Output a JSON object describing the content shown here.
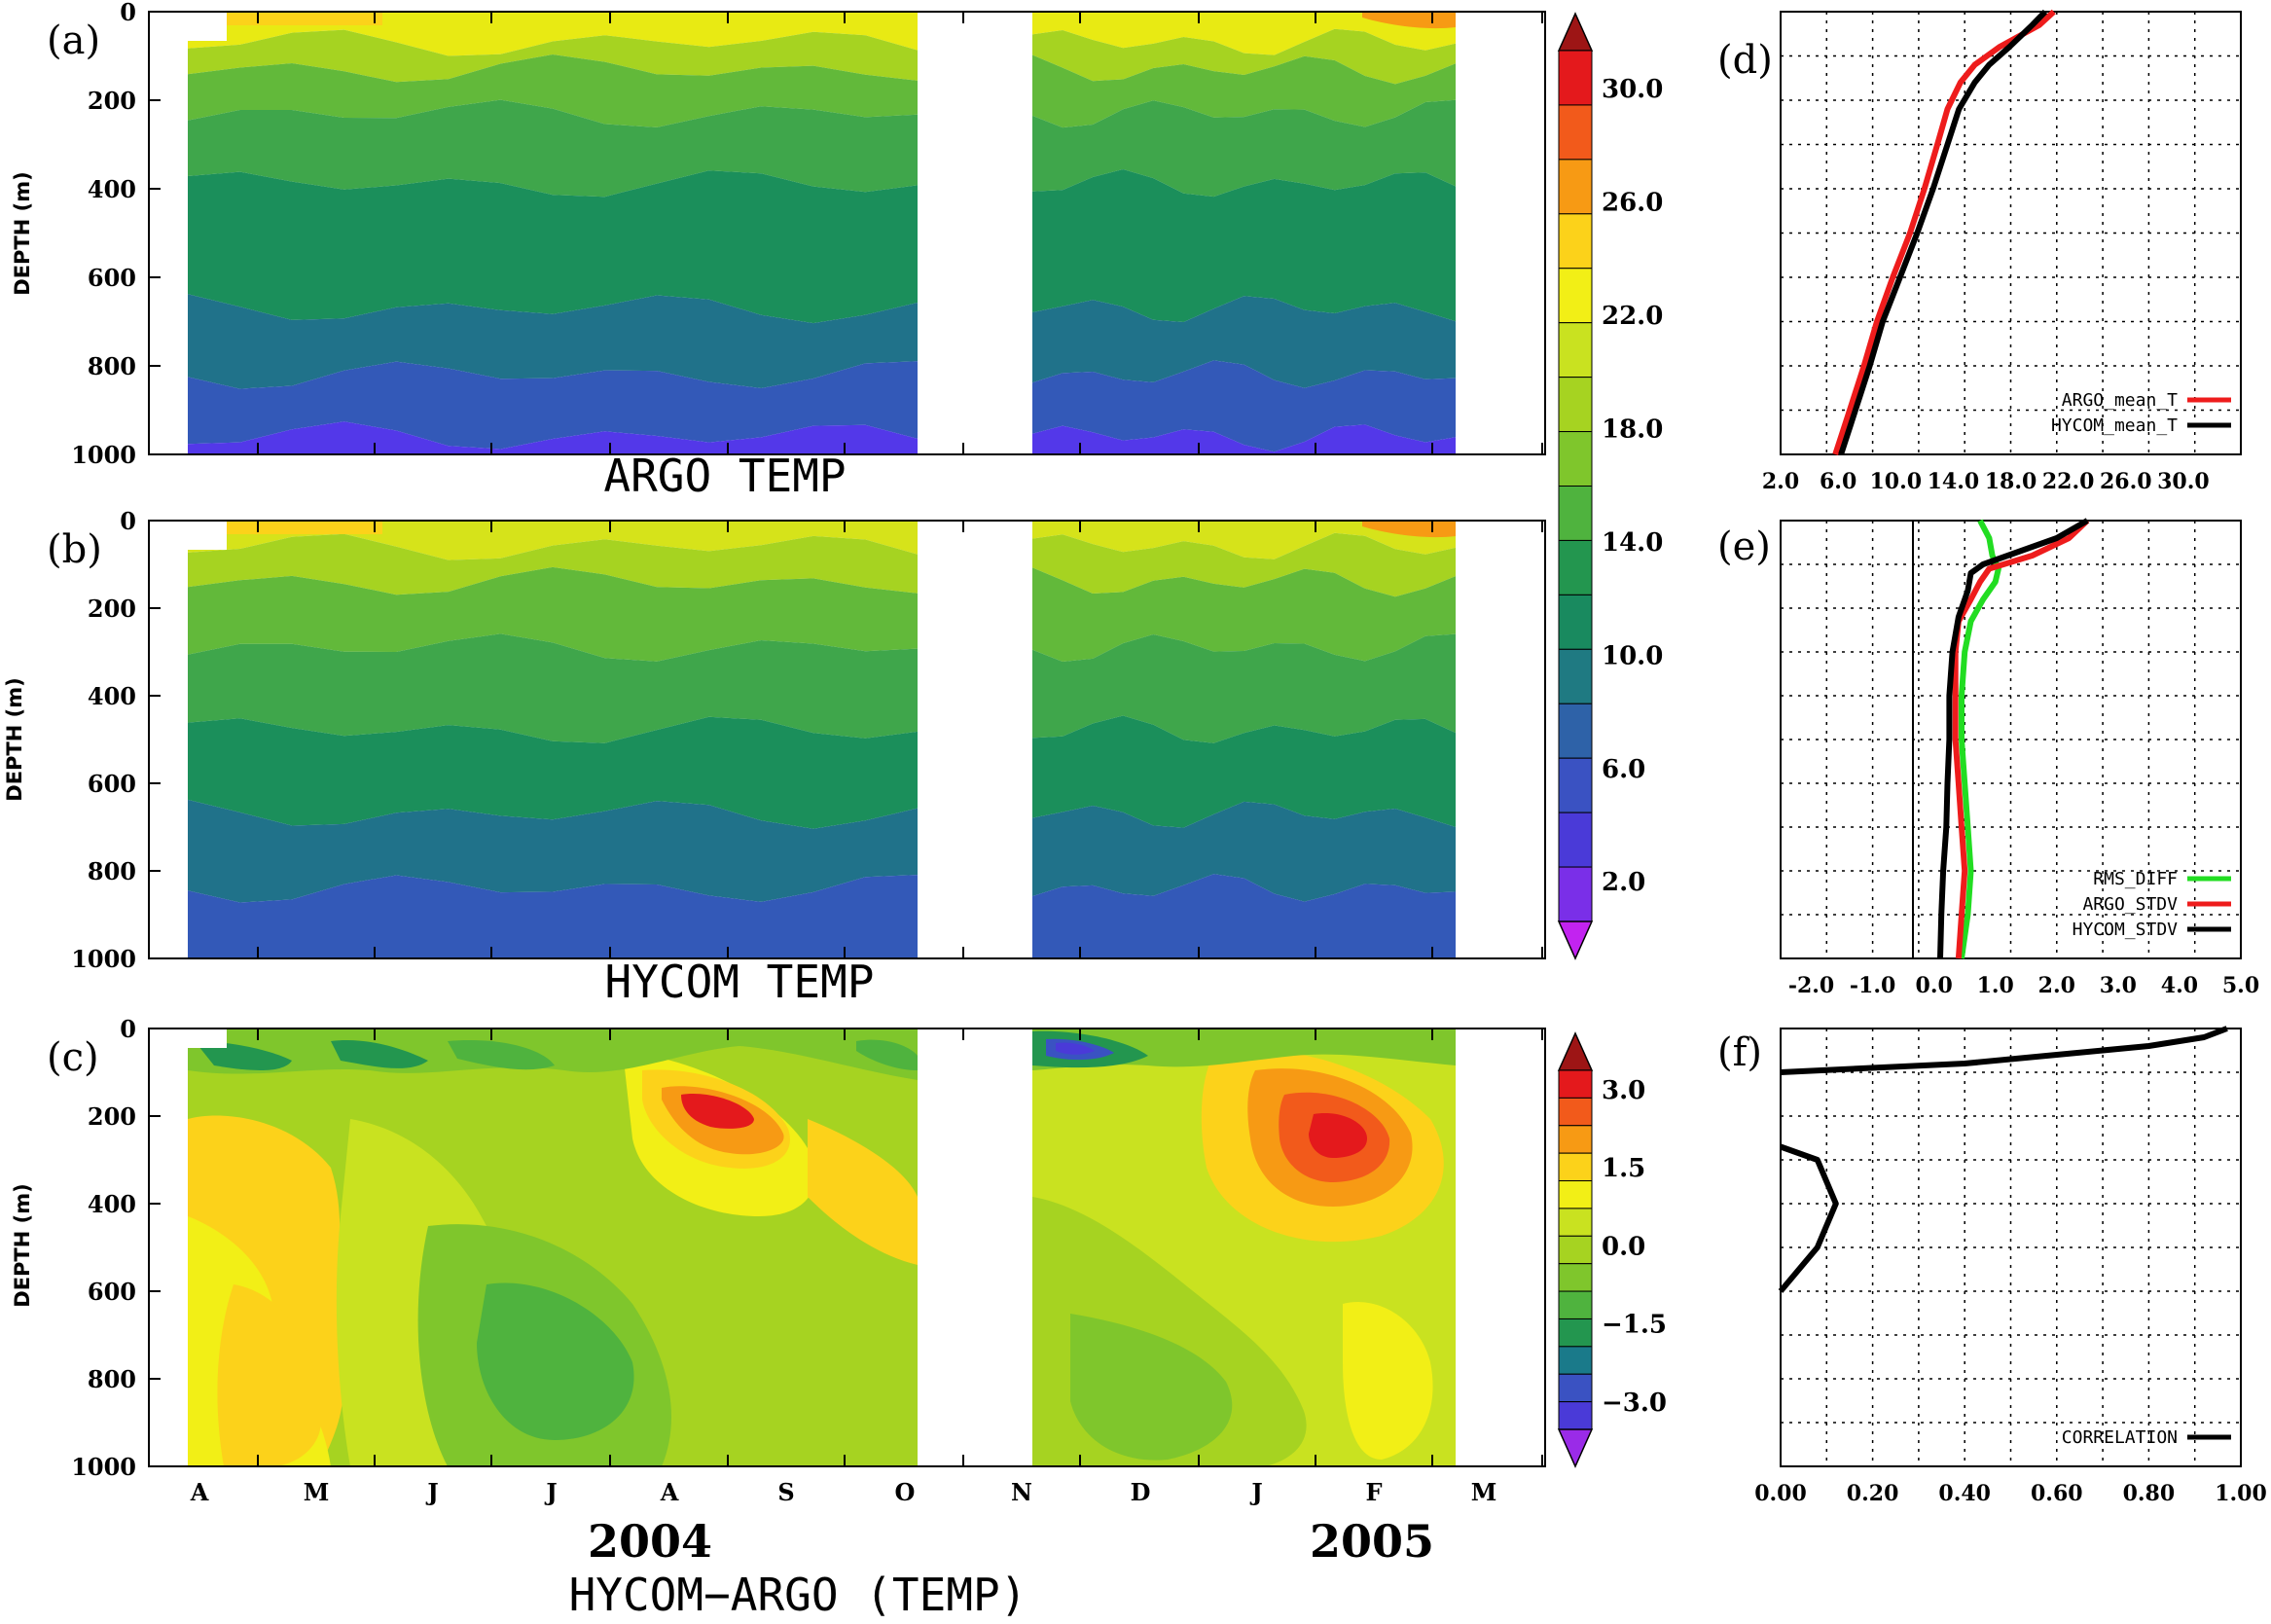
{
  "chart_data": [
    {
      "panel": "(a)",
      "type": "heatmap",
      "title": "ARGO TEMP",
      "ylabel": "DEPTH (m)",
      "yticks": [
        "0",
        "200",
        "400",
        "600",
        "800",
        "1000"
      ],
      "ylim": [
        1000,
        0
      ],
      "contour_levels": [
        2,
        6,
        10,
        14,
        18,
        22,
        26,
        30
      ],
      "layers": [
        {
          "top": 0,
          "bottom": 70,
          "color": "#e8ea13"
        },
        {
          "top": 70,
          "bottom": 130,
          "color": "#a6d321"
        },
        {
          "top": 130,
          "bottom": 230,
          "color": "#62b93a"
        },
        {
          "top": 230,
          "bottom": 390,
          "color": "#3fa64b"
        },
        {
          "top": 390,
          "bottom": 670,
          "color": "#1b8f5b"
        },
        {
          "top": 670,
          "bottom": 820,
          "color": "#20728a"
        },
        {
          "top": 820,
          "bottom": 960,
          "color": "#3359b8"
        },
        {
          "top": 960,
          "bottom": 1000,
          "color": "#5338e9"
        }
      ]
    },
    {
      "panel": "(b)",
      "type": "heatmap",
      "title": "HYCOM TEMP",
      "ylabel": "DEPTH (m)",
      "yticks": [
        "0",
        "200",
        "400",
        "600",
        "800",
        "1000"
      ],
      "ylim": [
        1000,
        0
      ],
      "contour_levels": [
        2,
        6,
        10,
        14,
        18,
        22,
        26,
        30
      ],
      "layers": [
        {
          "top": 0,
          "bottom": 60,
          "color": "#d6e31a"
        },
        {
          "top": 60,
          "bottom": 140,
          "color": "#a6d321"
        },
        {
          "top": 140,
          "bottom": 290,
          "color": "#62b93a"
        },
        {
          "top": 290,
          "bottom": 480,
          "color": "#3fa64b"
        },
        {
          "top": 480,
          "bottom": 670,
          "color": "#1b8f5b"
        },
        {
          "top": 670,
          "bottom": 840,
          "color": "#20728a"
        },
        {
          "top": 840,
          "bottom": 1000,
          "color": "#3359b8"
        }
      ]
    },
    {
      "panel": "(c)",
      "type": "heatmap",
      "title": "HYCOM-ARGO (TEMP)",
      "ylabel": "DEPTH (m)",
      "yticks": [
        "0",
        "200",
        "400",
        "600",
        "800",
        "1000"
      ],
      "ylim": [
        1000,
        0
      ],
      "xticks": [
        "A",
        "M",
        "J",
        "J",
        "A",
        "S",
        "O",
        "N",
        "D",
        "J",
        "F",
        "M"
      ],
      "years": [
        "2004",
        "2005"
      ]
    },
    {
      "panel": "(d)",
      "type": "line",
      "xticks": [
        "2.0",
        "6.0",
        "10.0",
        "14.0",
        "18.0",
        "22.0",
        "26.0",
        "30.0"
      ],
      "xlim": [
        2,
        34
      ],
      "ylim": [
        1000,
        0
      ],
      "series": [
        {
          "name": "ARGO_mean_T",
          "color": "#ee1c1c",
          "depth": [
            0,
            30,
            80,
            120,
            160,
            220,
            300,
            400,
            500,
            600,
            700,
            800,
            900,
            1000
          ],
          "values": [
            21.0,
            20.0,
            17.2,
            15.5,
            14.5,
            13.6,
            12.9,
            12.0,
            11.0,
            9.8,
            8.7,
            7.8,
            6.8,
            5.8
          ]
        },
        {
          "name": "HYCOM_mean_T",
          "color": "#000000",
          "depth": [
            0,
            30,
            80,
            120,
            160,
            220,
            300,
            400,
            500,
            600,
            700,
            800,
            900,
            1000
          ],
          "values": [
            20.4,
            19.5,
            17.9,
            16.5,
            15.5,
            14.4,
            13.6,
            12.6,
            11.5,
            10.3,
            9.1,
            8.2,
            7.2,
            6.2
          ]
        }
      ]
    },
    {
      "panel": "(e)",
      "type": "line",
      "xticks": [
        "-2.0",
        "-1.0",
        "0.0",
        "1.0",
        "2.0",
        "3.0",
        "4.0",
        "5.0"
      ],
      "xlim": [
        -2.5,
        5
      ],
      "ylim": [
        1000,
        0
      ],
      "series": [
        {
          "name": "RMS_DIFF",
          "color": "#22dd22",
          "depth": [
            0,
            40,
            80,
            110,
            140,
            180,
            230,
            300,
            400,
            500,
            600,
            700,
            800,
            900,
            1000
          ],
          "values": [
            0.75,
            0.9,
            0.95,
            1.05,
            1.0,
            0.8,
            0.6,
            0.5,
            0.45,
            0.45,
            0.5,
            0.55,
            0.6,
            0.55,
            0.45
          ]
        },
        {
          "name": "ARGO_STDV",
          "color": "#ee1c1c",
          "depth": [
            0,
            40,
            80,
            110,
            140,
            180,
            230,
            300,
            400,
            500,
            600,
            700,
            800,
            900,
            1000
          ],
          "values": [
            2.5,
            2.2,
            1.6,
            0.9,
            0.75,
            0.6,
            0.4,
            0.35,
            0.35,
            0.35,
            0.4,
            0.45,
            0.5,
            0.45,
            0.4
          ]
        },
        {
          "name": "HYCOM_STDV",
          "color": "#000000",
          "depth": [
            0,
            40,
            80,
            100,
            120,
            160,
            220,
            300,
            400,
            500,
            600,
            700,
            800,
            900,
            1000
          ],
          "values": [
            2.5,
            2.0,
            1.2,
            0.8,
            0.6,
            0.55,
            0.4,
            0.3,
            0.25,
            0.25,
            0.22,
            0.2,
            0.15,
            0.12,
            0.1
          ]
        }
      ]
    },
    {
      "panel": "(f)",
      "type": "line",
      "xticks": [
        "0.00",
        "0.20",
        "0.40",
        "0.60",
        "0.80",
        "1.00"
      ],
      "xlim": [
        0,
        1
      ],
      "ylim": [
        1000,
        0
      ],
      "series": [
        {
          "name": "CORRELATION",
          "color": "#000000",
          "depth": [
            0,
            20,
            40,
            60,
            80,
            100,
            200,
            270,
            300,
            400,
            500,
            600
          ],
          "values": [
            0.97,
            0.92,
            0.8,
            0.6,
            0.4,
            0.0,
            null,
            0.0,
            0.08,
            0.12,
            0.08,
            0.0
          ]
        }
      ]
    }
  ],
  "colorbars": [
    {
      "name": "temperature",
      "labels": [
        "30.0",
        "26.0",
        "22.0",
        "18.0",
        "14.0",
        "10.0",
        "6.0",
        "2.0"
      ],
      "colors": [
        "#9d1515",
        "#e4191c",
        "#f25a1b",
        "#f79a14",
        "#fcd21a",
        "#f2ef16",
        "#c9e220",
        "#a6d321",
        "#7fc62c",
        "#4fb33e",
        "#23964f",
        "#198a5f",
        "#1f7a82",
        "#2e62a8",
        "#3a52c2",
        "#4a3ad8",
        "#7a2fe8",
        "#c223f0"
      ]
    },
    {
      "name": "difference",
      "labels": [
        "3.0",
        "1.5",
        "0.0",
        "−1.5",
        "−3.0"
      ],
      "colors": [
        "#9d1515",
        "#e4191c",
        "#f25a1b",
        "#f79a14",
        "#fcd21a",
        "#f2ef16",
        "#c9e220",
        "#a6d321",
        "#7fc62c",
        "#4fb33e",
        "#23964f",
        "#1a7a8a",
        "#3a52c2",
        "#4a3ad8",
        "#9a2be8"
      ]
    }
  ],
  "labels": {
    "a": "(a)",
    "b": "(b)",
    "c": "(c)",
    "d": "(d)",
    "e": "(e)",
    "f": "(f)",
    "title_a": "ARGO TEMP",
    "title_b": "HYCOM TEMP",
    "title_c": "HYCOM−ARGO (TEMP)",
    "ylabel": "DEPTH (m)",
    "year1": "2004",
    "year2": "2005"
  }
}
